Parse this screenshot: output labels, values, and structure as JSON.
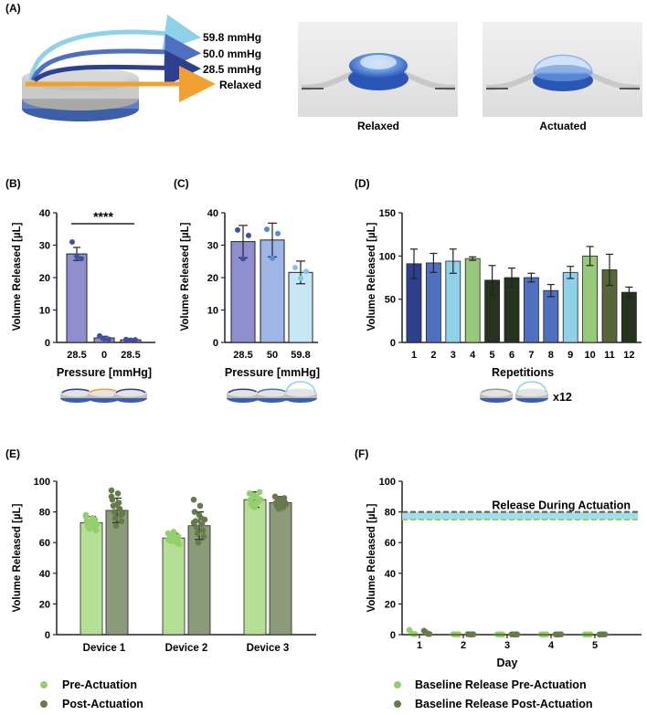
{
  "panel_labels": {
    "A": "(A)",
    "B": "(B)",
    "C": "(C)",
    "D": "(D)",
    "E": "(E)",
    "F": "(F)"
  },
  "colors": {
    "c59_8": "#8fd1e8",
    "c50_0": "#4f6fc1",
    "c28_5": "#2f3f8f",
    "relaxed": "#f0a030",
    "barB": "#8f8fd0",
    "barC1": "#8f8fd0",
    "barC2": "#9fb5e8",
    "barC3": "#c5e6f2",
    "pre": "#b4df94",
    "post": "#8b9a78",
    "pre_dot": "#93cf6c",
    "post_dot": "#667a4a",
    "band": "#9ed6ec"
  },
  "panel_a": {
    "pressures": [
      "59.8 mmHg",
      "50.0 mmHg",
      "28.5 mmHg",
      "Relaxed"
    ],
    "photo_labels": [
      "Relaxed",
      "Actuated"
    ]
  },
  "chart_data": [
    {
      "id": "B",
      "type": "bar",
      "categories": [
        "28.5",
        "0",
        "28.5"
      ],
      "values": [
        27.3,
        1.4,
        0.8
      ],
      "errors": [
        2.0,
        0.5,
        0.3
      ],
      "points": [
        [
          31.0,
          26.5,
          25.8
        ],
        [
          2.0,
          1.1,
          1.0
        ],
        [
          0.9,
          0.7,
          0.8
        ]
      ],
      "xlabel": "Pressure [mmHg]",
      "ylabel": "Volume Released [µL]",
      "ylim": [
        0,
        40
      ],
      "yticks": [
        "0",
        "10",
        "20",
        "30",
        "40"
      ],
      "significance": "****"
    },
    {
      "id": "C",
      "type": "bar",
      "categories": [
        "28.5",
        "50",
        "59.8"
      ],
      "values": [
        31.1,
        31.6,
        21.6
      ],
      "errors": [
        5.0,
        5.2,
        3.5
      ],
      "points": [
        [
          34.7,
          25.8,
          33.0
        ],
        [
          34.9,
          26.0,
          33.6
        ],
        [
          23.1,
          19.8,
          21.9
        ]
      ],
      "xlabel": "Pressure [mmHg]",
      "ylabel": "Volume Released [µL]",
      "ylim": [
        0,
        40
      ],
      "yticks": [
        "0",
        "10",
        "20",
        "30",
        "40"
      ]
    },
    {
      "id": "D",
      "type": "bar",
      "categories": [
        "1",
        "2",
        "3",
        "4",
        "5",
        "6",
        "7",
        "8",
        "9",
        "10",
        "11",
        "12"
      ],
      "values": [
        91,
        92,
        94,
        97,
        72,
        75,
        75,
        60,
        81,
        100,
        84,
        58
      ],
      "errors": [
        17,
        11,
        14,
        2,
        17,
        11,
        5,
        7,
        7,
        11,
        18,
        6
      ],
      "xlabel": "Repetitions",
      "ylabel": "Volume Released [µL]",
      "ylim": [
        0,
        150
      ],
      "yticks": [
        "0",
        "50",
        "100",
        "150"
      ],
      "annotation": "x12"
    },
    {
      "id": "E",
      "type": "bar",
      "categories": [
        "Device 1",
        "Device 2",
        "Device 3"
      ],
      "series": [
        {
          "name": "Pre-Actuation",
          "values": [
            73,
            63,
            88
          ],
          "errors": [
            4,
            3,
            5
          ],
          "points": [
            [
              78,
              76,
              74,
              72,
              71,
              70,
              73,
              75,
              69,
              68,
              74,
              72,
              70,
              77
            ],
            [
              66,
              64,
              62,
              61,
              63,
              60,
              65,
              62,
              61,
              64,
              63,
              59,
              67,
              62
            ],
            [
              92,
              90,
              88,
              86,
              85,
              89,
              84,
              87,
              91,
              93,
              86,
              88,
              83
            ]
          ]
        },
        {
          "name": "Post-Actuation",
          "values": [
            81,
            71,
            86
          ],
          "errors": [
            8,
            9,
            4
          ],
          "points": [
            [
              94,
              92,
              88,
              86,
              84,
              82,
              80,
              78,
              76,
              74,
              71,
              79,
              85,
              90
            ],
            [
              88,
              84,
              80,
              76,
              74,
              72,
              70,
              68,
              66,
              64,
              60,
              75,
              78,
              73
            ],
            [
              90,
              88,
              86,
              85,
              84,
              83,
              87,
              89,
              82,
              86,
              88,
              85
            ]
          ]
        }
      ],
      "ylabel": "Volume Released [µL]",
      "ylim": [
        0,
        100
      ],
      "yticks": [
        "0",
        "20",
        "40",
        "60",
        "80",
        "100"
      ]
    },
    {
      "id": "F",
      "type": "scatter",
      "x": [
        "1",
        "2",
        "3",
        "4",
        "5"
      ],
      "series": [
        {
          "name": "Baseline Release Pre-Actuation",
          "values": [
            [
              3,
              1,
              0.5,
              0.3
            ],
            [
              0.3,
              0.2,
              0.1,
              0.2
            ],
            [
              0.2,
              0.1,
              0.2,
              0.1
            ],
            [
              0.2,
              0.1,
              0.1,
              0.2
            ],
            [
              0.1,
              0.2,
              0.1,
              0.2
            ]
          ]
        },
        {
          "name": "Baseline Release Post-Actuation",
          "values": [
            [
              2.5,
              1.5,
              0.6,
              0.4
            ],
            [
              0.3,
              0.2,
              0.1,
              0.2
            ],
            [
              0.2,
              0.1,
              0.2,
              0.1
            ],
            [
              0.2,
              0.1,
              0.1,
              0.2
            ],
            [
              0.1,
              0.2,
              0.1,
              0.2
            ]
          ]
        }
      ],
      "band": {
        "label": "Release During Actuation",
        "low": 75,
        "high": 80,
        "mean": 77
      },
      "xlabel": "Day",
      "ylabel": "Volume Released [µL]",
      "ylim": [
        0,
        100
      ],
      "yticks": [
        "0",
        "20",
        "40",
        "60",
        "80",
        "100"
      ]
    }
  ]
}
